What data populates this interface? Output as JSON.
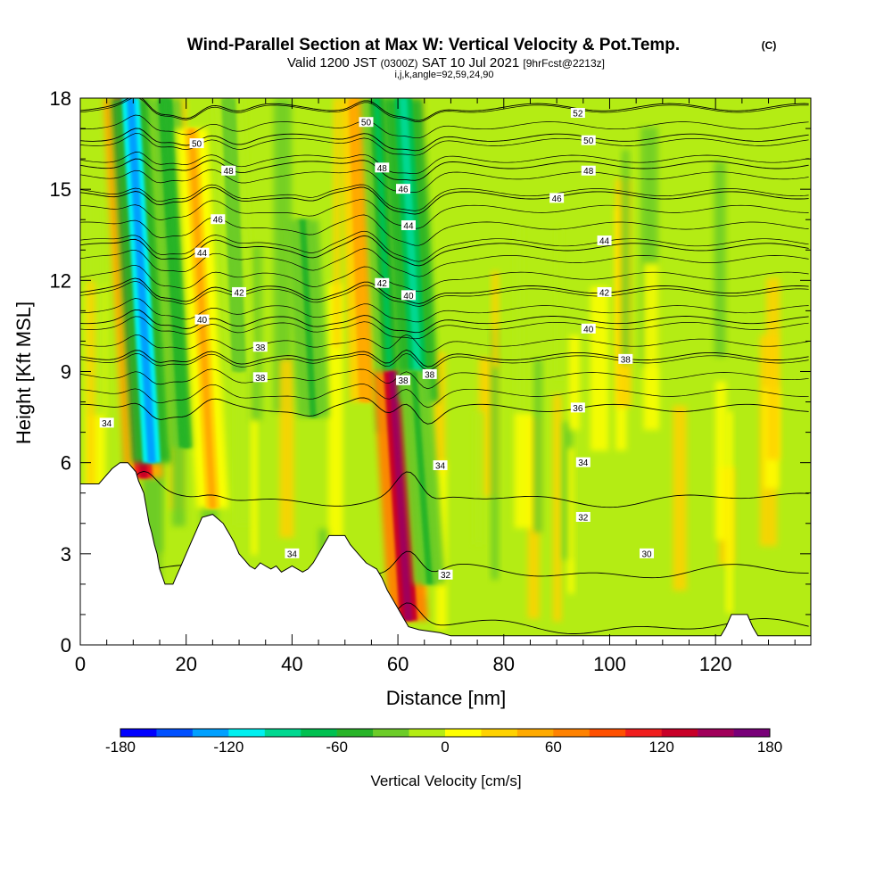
{
  "header": {
    "title": "Wind-Parallel Section at Max W: Vertical Velocity & Pot.Temp.",
    "copyright": "(C)",
    "valid_prefix": "Valid 1200 JST",
    "valid_zulu": "(0300Z)",
    "valid_date": "SAT 10 Jul 2021",
    "forecast": "[9hrFcst@2213z]",
    "params": "i,j,k,angle=92,59,24,90"
  },
  "chart_data": {
    "type": "heatmap",
    "xlabel": "Distance [nm]",
    "ylabel": "Height [Kft MSL]",
    "xlim": [
      0,
      138
    ],
    "ylim": [
      0,
      18
    ],
    "x_ticks": [
      0,
      20,
      40,
      60,
      80,
      100,
      120
    ],
    "y_ticks": [
      0,
      3,
      6,
      9,
      12,
      15,
      18
    ],
    "grid": false,
    "legend": "bottom",
    "colorbar": {
      "label": "Vertical Velocity [cm/s]",
      "ticks": [
        -180,
        -120,
        -60,
        0,
        60,
        120,
        180
      ],
      "min": -180,
      "max": 180,
      "colors": [
        "#0000ff",
        "#0050ff",
        "#00a0ff",
        "#00f0f0",
        "#00d890",
        "#00c050",
        "#28b428",
        "#6ccc28",
        "#b4ec14",
        "#ffff00",
        "#ffd200",
        "#ffaa00",
        "#ff8200",
        "#ff5000",
        "#f01e1e",
        "#c80028",
        "#a0005a",
        "#780078"
      ]
    },
    "velocity_features": [
      {
        "x": 12,
        "y0": 5.5,
        "y1": 18,
        "w": 130,
        "kind": "updraft"
      },
      {
        "x": 13.5,
        "y0": 6,
        "y1": 18,
        "w": -130,
        "kind": "downdraft"
      },
      {
        "x": 20,
        "y0": 6.5,
        "y1": 18,
        "w": -60,
        "kind": "downdraft"
      },
      {
        "x": 25,
        "y0": 4.5,
        "y1": 17,
        "w": 40,
        "kind": "updraft"
      },
      {
        "x": 30,
        "y0": 9,
        "y1": 18,
        "w": -30,
        "kind": "downdraft"
      },
      {
        "x": 44,
        "y0": 7.5,
        "y1": 14,
        "w": -50,
        "kind": "downdraft"
      },
      {
        "x": 54,
        "y0": 8,
        "y1": 18,
        "w": 55,
        "kind": "updraft"
      },
      {
        "x": 59,
        "y0": 7,
        "y1": 18,
        "w": -70,
        "kind": "downdraft"
      },
      {
        "x": 62,
        "y0": 0.8,
        "y1": 9,
        "w": 150,
        "kind": "updraft"
      },
      {
        "x": 64,
        "y0": 8,
        "y1": 18,
        "w": -100,
        "kind": "downdraft"
      },
      {
        "x": 66,
        "y0": 2,
        "y1": 9,
        "w": -50,
        "kind": "downdraft"
      }
    ],
    "theta_contours": [
      {
        "label": "30",
        "base": 0.6
      },
      {
        "label": "32",
        "base": 2.4
      },
      {
        "label": "34",
        "base": 4.8
      },
      {
        "label": "36",
        "base": 7.8
      },
      {
        "label": "38",
        "base": 9.5
      },
      {
        "label": "40",
        "base": 10.7
      },
      {
        "label": "42",
        "base": 11.7
      },
      {
        "label": "44",
        "base": 13.1
      },
      {
        "label": "46",
        "base": 14.8
      },
      {
        "label": "48",
        "base": 15.8
      },
      {
        "label": "50",
        "base": 16.7
      },
      {
        "label": "52",
        "base": 17.7
      }
    ],
    "theta_labels": [
      {
        "text": "52",
        "x": 94,
        "y": 17.5
      },
      {
        "text": "50",
        "x": 22,
        "y": 16.5
      },
      {
        "text": "50",
        "x": 54,
        "y": 17.2
      },
      {
        "text": "50",
        "x": 96,
        "y": 16.6
      },
      {
        "text": "48",
        "x": 28,
        "y": 15.6
      },
      {
        "text": "48",
        "x": 57,
        "y": 15.7
      },
      {
        "text": "48",
        "x": 96,
        "y": 15.6
      },
      {
        "text": "46",
        "x": 26,
        "y": 14.0
      },
      {
        "text": "46",
        "x": 61,
        "y": 15.0
      },
      {
        "text": "46",
        "x": 90,
        "y": 14.7
      },
      {
        "text": "44",
        "x": 23,
        "y": 12.9
      },
      {
        "text": "44",
        "x": 62,
        "y": 13.8
      },
      {
        "text": "44",
        "x": 99,
        "y": 13.3
      },
      {
        "text": "42",
        "x": 30,
        "y": 11.6
      },
      {
        "text": "42",
        "x": 57,
        "y": 11.9
      },
      {
        "text": "42",
        "x": 99,
        "y": 11.6
      },
      {
        "text": "40",
        "x": 23,
        "y": 10.7
      },
      {
        "text": "40",
        "x": 62,
        "y": 11.5
      },
      {
        "text": "40",
        "x": 96,
        "y": 10.4
      },
      {
        "text": "38",
        "x": 34,
        "y": 9.8
      },
      {
        "text": "38",
        "x": 34,
        "y": 8.8
      },
      {
        "text": "38",
        "x": 61,
        "y": 8.7
      },
      {
        "text": "38",
        "x": 66,
        "y": 8.9
      },
      {
        "text": "38",
        "x": 103,
        "y": 9.4
      },
      {
        "text": "36",
        "x": 94,
        "y": 7.8
      },
      {
        "text": "34",
        "x": 5,
        "y": 7.3
      },
      {
        "text": "34",
        "x": 68,
        "y": 5.9
      },
      {
        "text": "34",
        "x": 95,
        "y": 6.0
      },
      {
        "text": "34",
        "x": 40,
        "y": 3.0
      },
      {
        "text": "32",
        "x": 95,
        "y": 4.2
      },
      {
        "text": "32",
        "x": 69,
        "y": 2.3
      },
      {
        "text": "30",
        "x": 107,
        "y": 3.0
      }
    ],
    "terrain": [
      [
        0,
        5.3
      ],
      [
        3.5,
        5.3
      ],
      [
        4.5,
        5.5
      ],
      [
        6,
        5.8
      ],
      [
        7.5,
        6.0
      ],
      [
        9,
        6.0
      ],
      [
        10.5,
        5.7
      ],
      [
        11,
        5.4
      ],
      [
        12,
        5.0
      ],
      [
        12.5,
        4.5
      ],
      [
        13,
        4.0
      ],
      [
        13.5,
        3.7
      ],
      [
        14,
        3.3
      ],
      [
        14.5,
        3.0
      ],
      [
        15,
        2.5
      ],
      [
        16,
        2.0
      ],
      [
        17.5,
        2.0
      ],
      [
        18,
        2.2
      ],
      [
        19,
        2.6
      ],
      [
        20,
        3.0
      ],
      [
        21,
        3.4
      ],
      [
        22,
        3.8
      ],
      [
        23,
        4.2
      ],
      [
        25,
        4.3
      ],
      [
        27,
        4.0
      ],
      [
        28,
        3.7
      ],
      [
        29,
        3.4
      ],
      [
        30,
        3.0
      ],
      [
        31,
        2.8
      ],
      [
        32,
        2.6
      ],
      [
        33,
        2.5
      ],
      [
        34,
        2.7
      ],
      [
        35,
        2.6
      ],
      [
        36,
        2.5
      ],
      [
        37,
        2.6
      ],
      [
        38,
        2.4
      ],
      [
        40,
        2.6
      ],
      [
        42,
        2.4
      ],
      [
        43,
        2.5
      ],
      [
        44,
        2.7
      ],
      [
        45,
        3.0
      ],
      [
        46,
        3.3
      ],
      [
        47,
        3.6
      ],
      [
        50,
        3.6
      ],
      [
        51,
        3.3
      ],
      [
        52,
        3.1
      ],
      [
        53,
        2.9
      ],
      [
        54,
        2.7
      ],
      [
        55,
        2.6
      ],
      [
        56,
        2.5
      ],
      [
        57,
        2.2
      ],
      [
        58,
        1.8
      ],
      [
        59,
        1.5
      ],
      [
        60,
        1.2
      ],
      [
        61,
        0.9
      ],
      [
        62,
        0.6
      ],
      [
        64,
        0.5
      ],
      [
        68,
        0.4
      ],
      [
        70,
        0.3
      ],
      [
        121,
        0.3
      ],
      [
        122,
        0.6
      ],
      [
        123,
        1.0
      ],
      [
        126,
        1.0
      ],
      [
        127,
        0.6
      ],
      [
        128,
        0.3
      ],
      [
        138,
        0.3
      ]
    ]
  }
}
